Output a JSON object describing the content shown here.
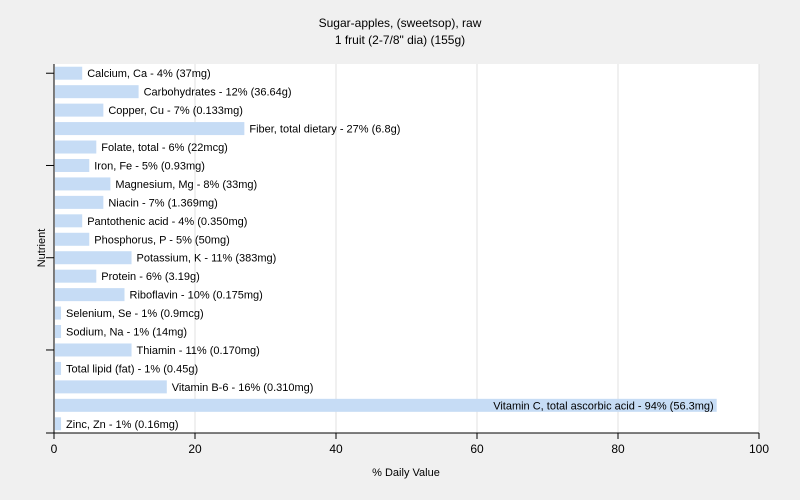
{
  "chart_data": {
    "type": "bar",
    "orientation": "horizontal",
    "title": "Sugar-apples, (sweetsop), raw",
    "subtitle": "1 fruit (2-7/8\" dia) (155g)",
    "xlabel": "% Daily Value",
    "ylabel": "Nutrient",
    "xlim": [
      0,
      100
    ],
    "xticks": [
      0,
      20,
      40,
      60,
      80,
      100
    ],
    "grid": true,
    "bar_color": "#c6dcf5",
    "background_color": "#f0f0f0",
    "plot_background": "#ffffff",
    "categories": [
      "Calcium, Ca",
      "Carbohydrates",
      "Copper, Cu",
      "Fiber, total dietary",
      "Folate, total",
      "Iron, Fe",
      "Magnesium, Mg",
      "Niacin",
      "Pantothenic acid",
      "Phosphorus, P",
      "Potassium, K",
      "Protein",
      "Riboflavin",
      "Selenium, Se",
      "Sodium, Na",
      "Thiamin",
      "Total lipid (fat)",
      "Vitamin B-6",
      "Vitamin C, total ascorbic acid",
      "Zinc, Zn"
    ],
    "values": [
      4,
      12,
      7,
      27,
      6,
      5,
      8,
      7,
      4,
      5,
      11,
      6,
      10,
      1,
      1,
      11,
      1,
      16,
      94,
      1
    ],
    "labels": [
      "Calcium, Ca - 4% (37mg)",
      "Carbohydrates - 12% (36.64g)",
      "Copper, Cu - 7% (0.133mg)",
      "Fiber, total dietary - 27% (6.8g)",
      "Folate, total - 6% (22mcg)",
      "Iron, Fe - 5% (0.93mg)",
      "Magnesium, Mg - 8% (33mg)",
      "Niacin - 7% (1.369mg)",
      "Pantothenic acid - 4% (0.350mg)",
      "Phosphorus, P - 5% (50mg)",
      "Potassium, K - 11% (383mg)",
      "Protein - 6% (3.19g)",
      "Riboflavin - 10% (0.175mg)",
      "Selenium, Se - 1% (0.9mcg)",
      "Sodium, Na - 1% (14mg)",
      "Thiamin - 11% (0.170mg)",
      "Total lipid (fat) - 1% (0.45g)",
      "Vitamin B-6 - 16% (0.310mg)",
      "Vitamin C, total ascorbic acid - 94% (56.3mg)",
      "Zinc, Zn - 1% (0.16mg)"
    ]
  }
}
